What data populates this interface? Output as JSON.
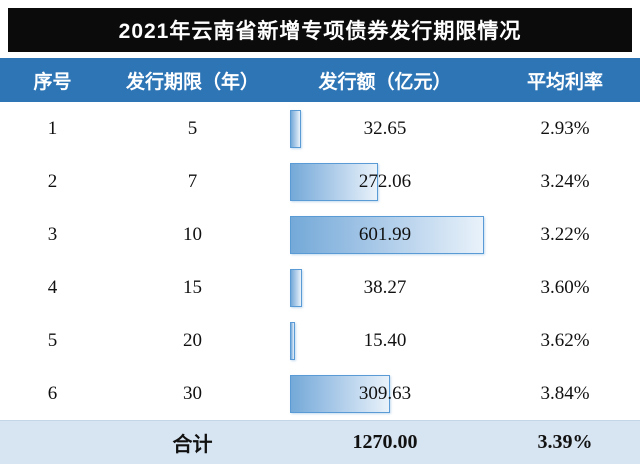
{
  "title": "2021年云南省新增专项债券发行期限情况",
  "columns": [
    "序号",
    "发行期限（年）",
    "发行额（亿元）",
    "平均利率"
  ],
  "rows": [
    {
      "index": "1",
      "term": "5",
      "amount": "32.65",
      "rate": "2.93%",
      "value": 32.65
    },
    {
      "index": "2",
      "term": "7",
      "amount": "272.06",
      "rate": "3.24%",
      "value": 272.06
    },
    {
      "index": "3",
      "term": "10",
      "amount": "601.99",
      "rate": "3.22%",
      "value": 601.99
    },
    {
      "index": "4",
      "term": "15",
      "amount": "38.27",
      "rate": "3.60%",
      "value": 38.27
    },
    {
      "index": "5",
      "term": "20",
      "amount": "15.40",
      "rate": "3.62%",
      "value": 15.4
    },
    {
      "index": "6",
      "term": "30",
      "amount": "309.63",
      "rate": "3.84%",
      "value": 309.63
    }
  ],
  "footer": {
    "label": "合计",
    "amount": "1270.00",
    "rate": "3.39%"
  },
  "colors": {
    "title_bg": "#0b0b0b",
    "header_bg": "#2e75b6",
    "footer_bg": "#d7e4f1",
    "bar_border": "#5b9bd5",
    "bar_gradient_start": "#74a9d8",
    "bar_gradient_end": "#e9f2fa"
  },
  "chart_data": {
    "type": "bar",
    "orientation": "horizontal",
    "title": "2021年云南省新增专项债券发行期限情况",
    "categories": [
      "5",
      "7",
      "10",
      "15",
      "20",
      "30"
    ],
    "series": [
      {
        "name": "发行额（亿元）",
        "values": [
          32.65,
          272.06,
          601.99,
          38.27,
          15.4,
          309.63
        ]
      },
      {
        "name": "平均利率(%)",
        "values": [
          2.93,
          3.24,
          3.22,
          3.6,
          3.62,
          3.84
        ]
      }
    ],
    "total_row": {
      "label": "合计",
      "发行额（亿元）": 1270.0,
      "平均利率": "3.39%"
    },
    "xlabel": "发行额（亿元）",
    "ylabel": "发行期限（年）",
    "xlim": [
      0,
      620
    ],
    "grid": false,
    "legend_position": "none"
  }
}
